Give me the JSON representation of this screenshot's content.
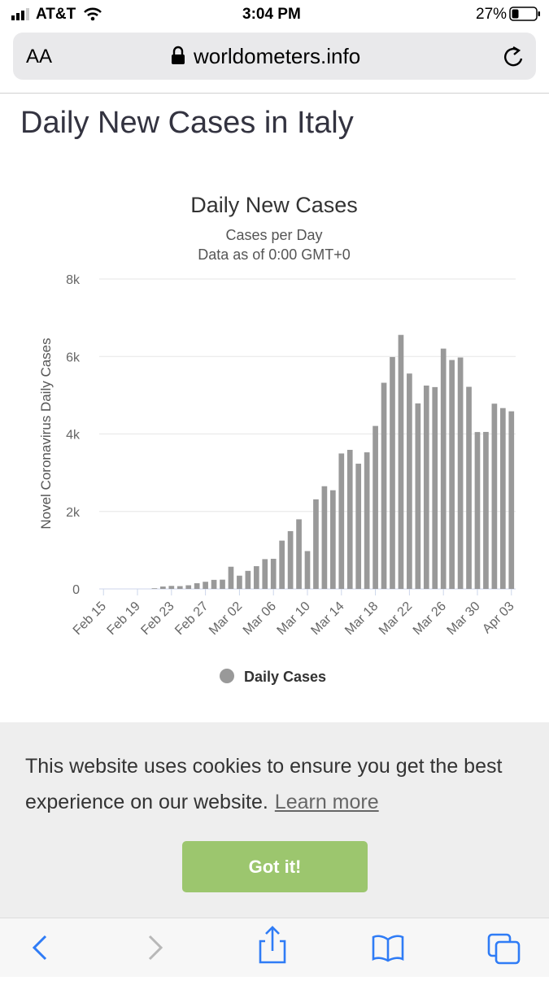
{
  "status_bar": {
    "carrier": "AT&T",
    "time": "3:04 PM",
    "battery": "27%"
  },
  "url_bar": {
    "text_size": "AA",
    "url": "worldometers.info"
  },
  "heading": "Daily New Cases in Italy",
  "chart_data": {
    "type": "bar",
    "title": "Daily New Cases",
    "subtitle": [
      "Cases per Day",
      "Data as of 0:00 GMT+0"
    ],
    "y_axis_label": "Novel Coronavirus Daily Cases",
    "categories": [
      "Feb 15",
      null,
      null,
      null,
      "Feb 19",
      null,
      null,
      null,
      "Feb 23",
      null,
      null,
      null,
      "Feb 27",
      null,
      null,
      null,
      "Mar 02",
      null,
      null,
      null,
      "Mar 06",
      null,
      null,
      null,
      "Mar 10",
      null,
      null,
      null,
      "Mar 14",
      null,
      null,
      null,
      "Mar 18",
      null,
      null,
      null,
      "Mar 22",
      null,
      null,
      null,
      "Mar 26",
      null,
      null,
      null,
      "Mar 30",
      null,
      null,
      null,
      "Apr 03"
    ],
    "series": [
      {
        "name": "Daily Cases",
        "color": "#999999",
        "values": [
          0,
          0,
          0,
          0,
          0,
          0,
          17,
          62,
          78,
          72,
          94,
          147,
          185,
          234,
          239,
          573,
          342,
          466,
          587,
          769,
          778,
          1247,
          1492,
          1797,
          977,
          2313,
          2651,
          2547,
          3497,
          3590,
          3233,
          3526,
          4207,
          5322,
          5986,
          6557,
          5560,
          4789,
          5249,
          5210,
          6203,
          5909,
          5974,
          5217,
          4050,
          4053,
          4782,
          4668,
          4585
        ]
      }
    ],
    "ylim": [
      0,
      8000
    ],
    "yticks": [
      0,
      {
        "value": 2000,
        "label": "2k"
      },
      {
        "value": 4000,
        "label": "4k"
      },
      {
        "value": 6000,
        "label": "6k"
      },
      {
        "value": 8000,
        "label": "8k"
      }
    ],
    "grid": true
  },
  "cookie_banner": {
    "text": "This website uses cookies to ensure you get the best experience on our website.",
    "link": "Learn more",
    "button": "Got it!"
  }
}
